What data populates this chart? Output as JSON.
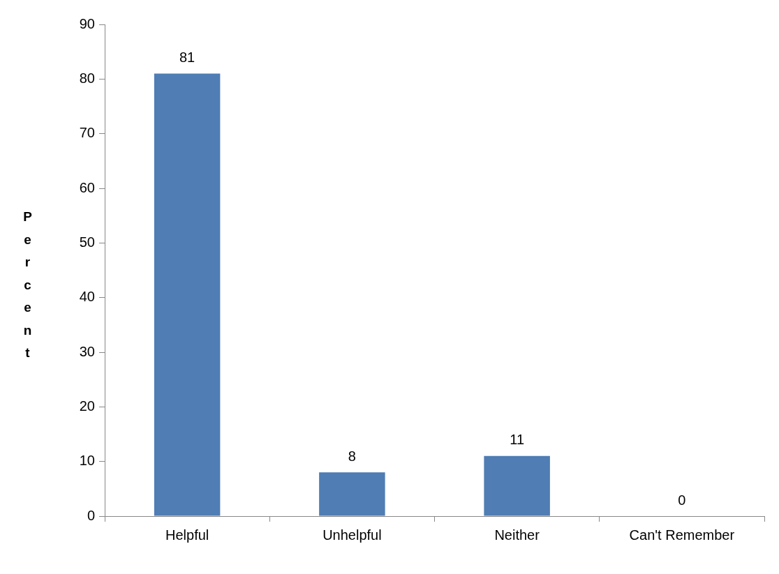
{
  "chart_data": {
    "type": "bar",
    "ylabel": "Percent",
    "categories": [
      "Helpful",
      "Unhelpful",
      "Neither",
      "Can't Remember"
    ],
    "values": [
      81,
      8,
      11,
      0
    ],
    "color": "#4f7db4",
    "ylim": [
      0,
      90
    ],
    "yticks": [
      0,
      10,
      20,
      30,
      40,
      50,
      60,
      70,
      80,
      90
    ],
    "grid": false,
    "legend": false,
    "data_labels": true
  }
}
